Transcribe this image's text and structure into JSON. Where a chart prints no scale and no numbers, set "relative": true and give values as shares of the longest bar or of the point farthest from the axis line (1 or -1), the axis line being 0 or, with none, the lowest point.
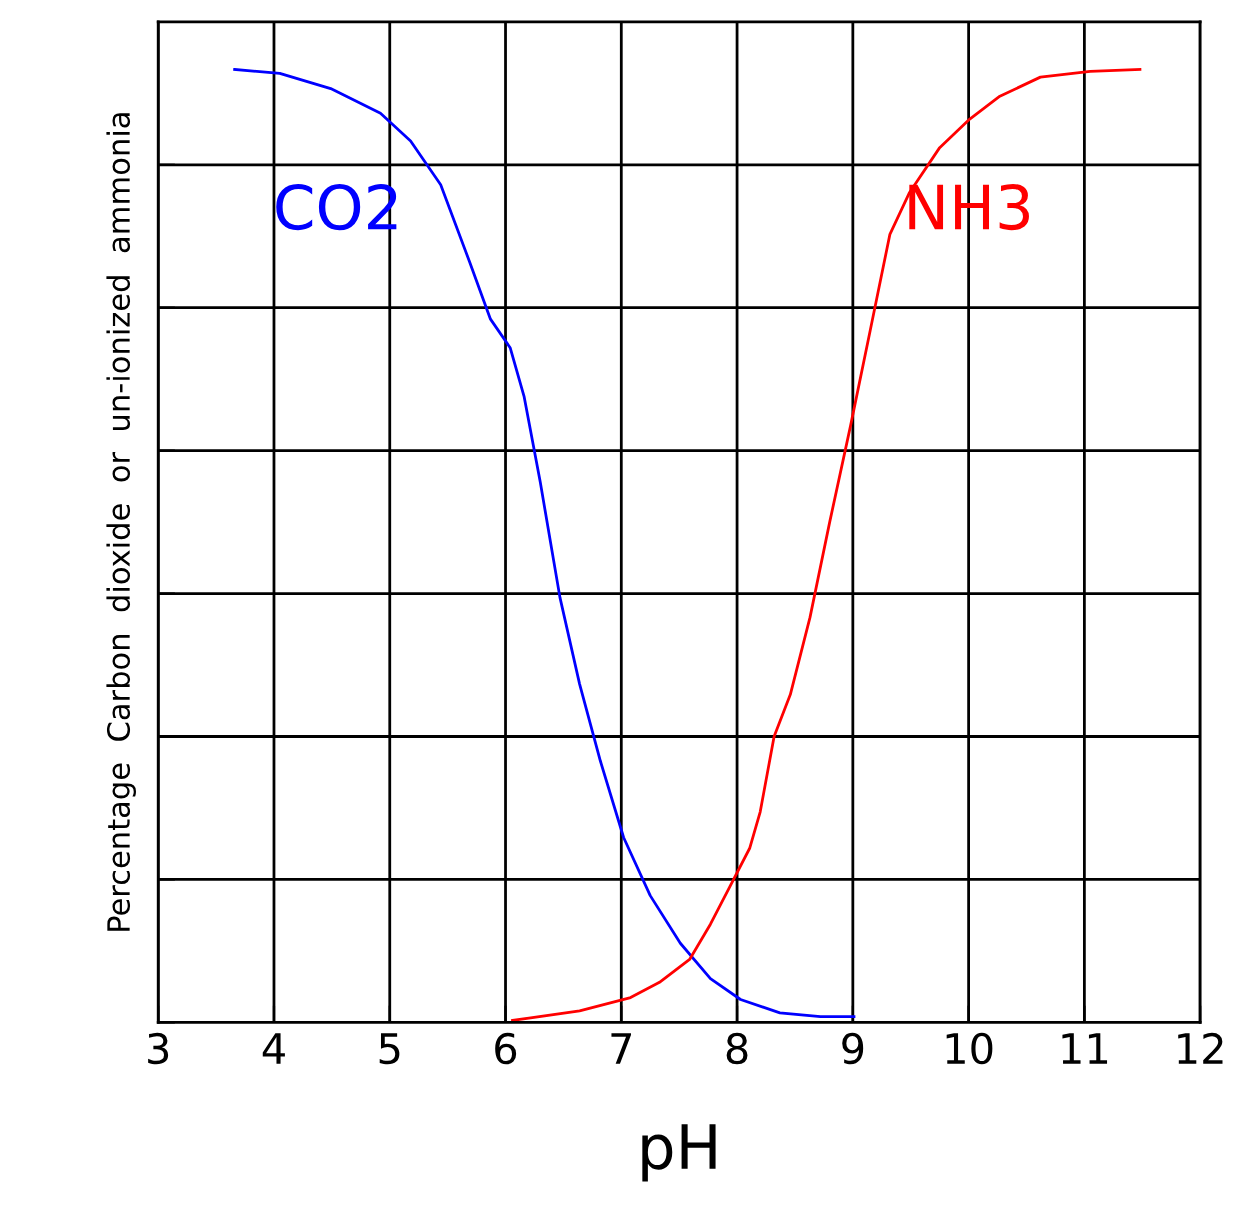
{
  "chart_data": {
    "type": "line",
    "xlabel": "pH",
    "ylabel": "Percentage  Carbon  dioxide  or  un-ionized  ammonia",
    "relative": true,
    "xlim": [
      3,
      12
    ],
    "xticks": [
      3,
      4,
      5,
      6,
      7,
      8,
      9,
      10,
      11,
      12
    ],
    "grid": true,
    "legend": false,
    "marker": "none",
    "line_style": "solid",
    "tick_labels": "x",
    "series": [
      {
        "name": "CO2",
        "color": "#0000ff",
        "x": [
          3.66,
          4.05,
          4.49,
          4.92,
          5.18,
          5.44,
          5.69,
          5.87,
          6.04,
          6.16,
          6.3,
          6.47,
          6.64,
          6.82,
          7.02,
          7.25,
          7.51,
          7.77,
          8.03,
          8.37,
          8.72,
          9.01
        ],
        "values": [
          1.0,
          0.996,
          0.98,
          0.954,
          0.925,
          0.879,
          0.798,
          0.738,
          0.708,
          0.657,
          0.567,
          0.446,
          0.355,
          0.274,
          0.194,
          0.133,
          0.083,
          0.046,
          0.024,
          0.01,
          0.006,
          0.006
        ]
      },
      {
        "name": "NH3",
        "color": "#ff0000",
        "x": [
          6.06,
          6.64,
          7.08,
          7.33,
          7.59,
          7.77,
          7.94,
          8.11,
          8.2,
          8.32,
          8.46,
          8.63,
          8.8,
          8.98,
          9.15,
          9.32,
          9.49,
          9.75,
          10.01,
          10.27,
          10.62,
          11.05,
          11.48
        ],
        "values": [
          0.002,
          0.012,
          0.026,
          0.042,
          0.066,
          0.103,
          0.143,
          0.183,
          0.221,
          0.3,
          0.344,
          0.425,
          0.525,
          0.626,
          0.726,
          0.827,
          0.871,
          0.918,
          0.948,
          0.972,
          0.992,
          0.998,
          1.0
        ]
      }
    ]
  }
}
